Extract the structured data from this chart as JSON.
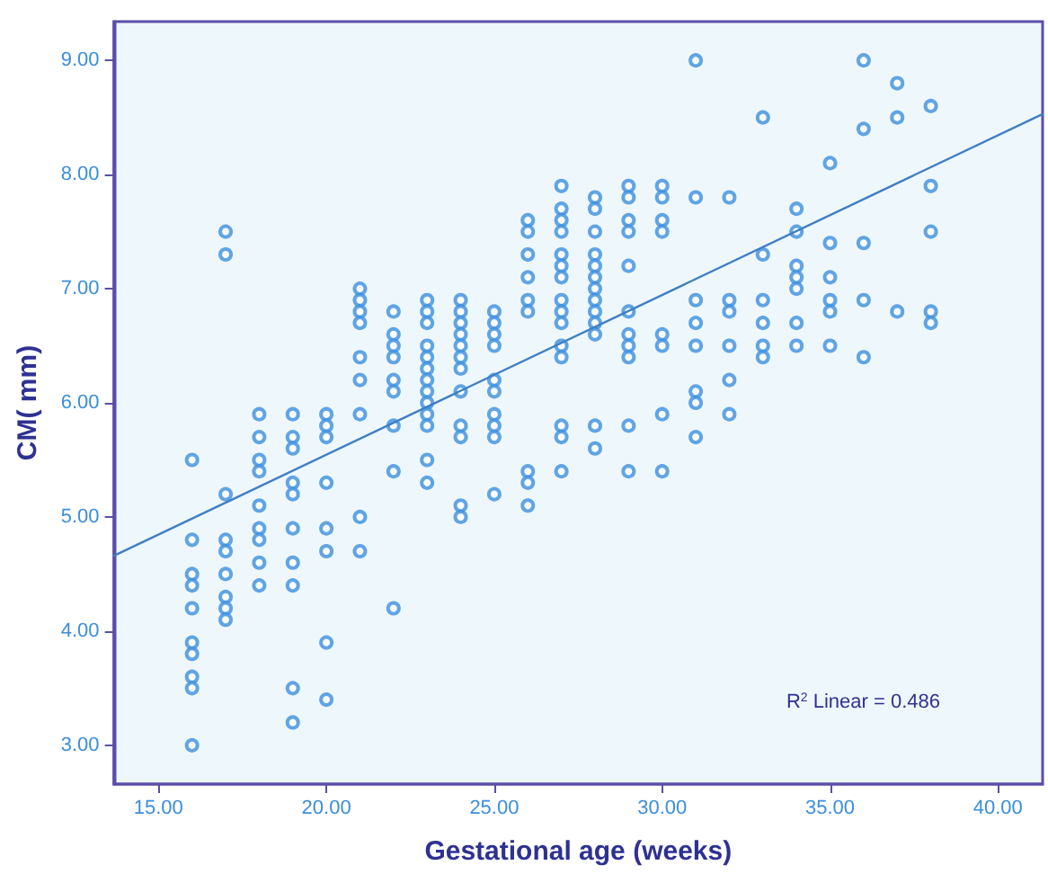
{
  "chart_data": {
    "type": "scatter",
    "xlabel": "Gestational age (weeks)",
    "ylabel": "CM( mm)",
    "marker": "circle",
    "xlim": [
      13.67,
      41.33
    ],
    "ylim": [
      2.66,
      9.34
    ],
    "xticks": [
      {
        "value": 15,
        "label": "15.00"
      },
      {
        "value": 20,
        "label": "20.00"
      },
      {
        "value": 25,
        "label": "25.00"
      },
      {
        "value": 30,
        "label": "30.00"
      },
      {
        "value": 35,
        "label": "35.00"
      },
      {
        "value": 40,
        "label": "40.00"
      }
    ],
    "yticks": [
      {
        "value": 3,
        "label": "3.00"
      },
      {
        "value": 4,
        "label": "4.00"
      },
      {
        "value": 5,
        "label": "5.00"
      },
      {
        "value": 6,
        "label": "6.00"
      },
      {
        "value": 7,
        "label": "7.00"
      },
      {
        "value": 8,
        "label": "8.00"
      },
      {
        "value": 9,
        "label": "9.00"
      }
    ],
    "annotations": [
      "R$^{2}$ Linear = 0.486"
    ],
    "series": [
      {
        "color": "#3b8ede",
        "x": [
          16,
          16,
          16,
          16,
          16,
          16,
          16,
          16,
          16,
          16,
          17,
          17,
          17,
          17,
          17,
          17,
          17,
          17,
          17,
          18,
          18,
          18,
          18,
          18,
          18,
          18,
          18,
          18,
          19,
          19,
          19,
          19,
          19,
          19,
          19,
          19,
          19,
          19,
          20,
          20,
          20,
          20,
          20,
          20,
          20,
          20,
          21,
          21,
          21,
          21,
          21,
          21,
          21,
          21,
          21,
          22,
          22,
          22,
          22,
          22,
          22,
          22,
          22,
          22,
          23,
          23,
          23,
          23,
          23,
          23,
          23,
          23,
          23,
          23,
          23,
          23,
          23,
          24,
          24,
          24,
          24,
          24,
          24,
          24,
          24,
          24,
          24,
          24,
          24,
          25,
          25,
          25,
          25,
          25,
          25,
          25,
          25,
          25,
          25,
          26,
          26,
          26,
          26,
          26,
          26,
          26,
          26,
          26,
          27,
          27,
          27,
          27,
          27,
          27,
          27,
          27,
          27,
          27,
          27,
          27,
          27,
          27,
          27,
          28,
          28,
          28,
          28,
          28,
          28,
          28,
          28,
          28,
          28,
          28,
          28,
          28,
          29,
          29,
          29,
          29,
          29,
          29,
          29,
          29,
          29,
          29,
          29,
          30,
          30,
          30,
          30,
          30,
          30,
          30,
          30,
          31,
          31,
          31,
          31,
          31,
          31,
          31,
          31,
          32,
          32,
          32,
          32,
          32,
          32,
          33,
          33,
          33,
          33,
          33,
          33,
          34,
          34,
          34,
          34,
          34,
          34,
          34,
          35,
          35,
          35,
          35,
          35,
          35,
          36,
          36,
          36,
          36,
          36,
          37,
          37,
          37,
          38,
          38,
          38,
          38,
          38
        ],
        "values": [
          5.5,
          4.8,
          4.5,
          4.4,
          4.2,
          3.9,
          3.8,
          3.6,
          3.5,
          3.0,
          7.5,
          7.3,
          5.2,
          4.8,
          4.7,
          4.5,
          4.3,
          4.2,
          4.1,
          5.9,
          5.7,
          5.5,
          5.4,
          5.1,
          4.9,
          4.8,
          4.6,
          4.4,
          5.9,
          5.7,
          5.6,
          5.3,
          5.2,
          4.9,
          4.6,
          4.4,
          3.5,
          3.2,
          5.9,
          5.8,
          5.7,
          5.3,
          4.9,
          4.7,
          3.9,
          3.4,
          7.0,
          6.9,
          6.8,
          6.7,
          6.4,
          6.2,
          5.9,
          5.0,
          4.7,
          6.8,
          6.6,
          6.5,
          6.4,
          6.2,
          6.1,
          5.8,
          5.4,
          4.2,
          6.9,
          6.8,
          6.7,
          6.5,
          6.4,
          6.3,
          6.2,
          6.1,
          6.0,
          5.9,
          5.8,
          5.5,
          5.3,
          6.9,
          6.8,
          6.7,
          6.6,
          6.5,
          6.4,
          6.3,
          6.1,
          5.8,
          5.7,
          5.1,
          5.0,
          6.8,
          6.7,
          6.6,
          6.5,
          6.2,
          6.1,
          5.9,
          5.8,
          5.7,
          5.2,
          7.6,
          7.5,
          7.3,
          7.1,
          6.9,
          6.8,
          5.4,
          5.3,
          5.1,
          7.9,
          7.7,
          7.6,
          7.5,
          7.3,
          7.2,
          7.1,
          6.9,
          6.8,
          6.7,
          6.5,
          6.4,
          5.8,
          5.7,
          5.4,
          7.8,
          7.7,
          7.5,
          7.3,
          7.2,
          7.1,
          7.0,
          6.9,
          6.8,
          6.7,
          6.6,
          5.8,
          5.6,
          7.9,
          7.8,
          7.6,
          7.5,
          7.2,
          6.8,
          6.6,
          6.5,
          6.4,
          5.8,
          5.4,
          7.9,
          7.8,
          7.6,
          7.5,
          6.6,
          6.5,
          5.9,
          5.4,
          9.0,
          7.8,
          6.9,
          6.7,
          6.5,
          6.1,
          6.0,
          5.7,
          7.8,
          6.9,
          6.8,
          6.5,
          6.2,
          5.9,
          8.5,
          7.3,
          6.9,
          6.7,
          6.5,
          6.4,
          7.7,
          7.5,
          7.2,
          7.1,
          7.0,
          6.7,
          6.5,
          8.1,
          7.4,
          7.1,
          6.9,
          6.8,
          6.5,
          9.0,
          8.4,
          7.4,
          6.9,
          6.4,
          8.8,
          8.5,
          6.8,
          8.6,
          7.9,
          7.5,
          6.8,
          6.7
        ]
      },
      {
        "type": "line",
        "color": "#3f7fc4",
        "marker": "none",
        "x": [
          13.67,
          41.33
        ],
        "values": [
          4.66,
          8.53
        ]
      }
    ]
  }
}
